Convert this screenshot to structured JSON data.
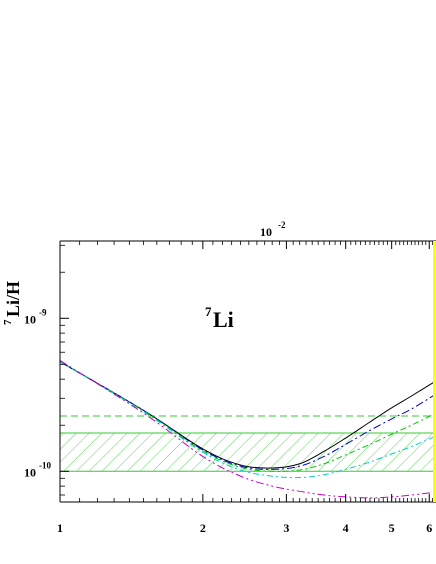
{
  "chart_data": {
    "type": "line",
    "panel_label": {
      "base": "Li",
      "sup": "7"
    },
    "ylabel": {
      "sup": "7",
      "text": "Li/H"
    },
    "top_label": {
      "base": "10",
      "sup": "-2"
    },
    "x_scale": "log",
    "y_scale": "log",
    "xlim": [
      1,
      6.2
    ],
    "ylim": [
      6.3e-11,
      3.2e-09
    ],
    "x_ticks": [
      {
        "value": 1,
        "label": "1"
      },
      {
        "value": 2,
        "label": "2"
      },
      {
        "value": 3,
        "label": "3"
      },
      {
        "value": 4,
        "label": "4"
      },
      {
        "value": 5,
        "label": "5"
      },
      {
        "value": 6,
        "label": "6"
      }
    ],
    "y_ticks": [
      {
        "value": 1e-10,
        "base": "10",
        "sup": "-10"
      },
      {
        "value": 1e-09,
        "base": "10",
        "sup": "-9"
      }
    ],
    "colors": {
      "band": "#33cc33",
      "yellow": "#ffff00",
      "black": "#000000",
      "blue": "#0000cc",
      "green": "#00cc00",
      "cyan": "#00cccc",
      "magenta": "#cc00cc"
    },
    "bands": {
      "hatched_range": [
        1e-10,
        1.78e-10
      ],
      "dashed_level": 2.3e-10
    },
    "series": [
      {
        "color": "#000000",
        "dash": "",
        "x": [
          1,
          1.5,
          2,
          2.4,
          2.8,
          3.2,
          3.6,
          4,
          4.5,
          5,
          5.5,
          6.2
        ],
        "values": [
          5.2e-10,
          2.5e-10,
          1.4e-10,
          1.1e-10,
          1.05e-10,
          1.12e-10,
          1.35e-10,
          1.65e-10,
          2.1e-10,
          2.6e-10,
          3.1e-10,
          3.9e-10
        ]
      },
      {
        "color": "#0000cc",
        "dash": "8,3,2,3",
        "x": [
          1,
          1.5,
          2,
          2.4,
          2.8,
          3.2,
          3.6,
          4,
          4.5,
          5,
          5.5,
          6.2
        ],
        "values": [
          5.2e-10,
          2.5e-10,
          1.38e-10,
          1.08e-10,
          1.03e-10,
          1.08e-10,
          1.25e-10,
          1.5e-10,
          1.85e-10,
          2.2e-10,
          2.55e-10,
          3.2e-10
        ]
      },
      {
        "color": "#00cc00",
        "dash": "6,3,2,3",
        "x": [
          1,
          1.5,
          2,
          2.4,
          2.8,
          3.2,
          3.6,
          4,
          4.5,
          5,
          5.5,
          6.2
        ],
        "values": [
          5.2e-10,
          2.48e-10,
          1.36e-10,
          1.06e-10,
          1e-10,
          1.02e-10,
          1.12e-10,
          1.28e-10,
          1.5e-10,
          1.75e-10,
          2e-10,
          2.4e-10
        ]
      },
      {
        "color": "#00cccc",
        "dash": "6,3,2,3",
        "x": [
          1,
          1.5,
          2,
          2.4,
          2.8,
          3.2,
          3.6,
          4,
          4.5,
          5,
          5.5,
          6.2
        ],
        "values": [
          5.2e-10,
          2.45e-10,
          1.33e-10,
          1.02e-10,
          9.3e-11,
          9.1e-11,
          9.5e-11,
          1.03e-10,
          1.15e-10,
          1.3e-10,
          1.45e-10,
          1.7e-10
        ]
      },
      {
        "color": "#cc00cc",
        "dash": "8,3,2,3,2,3",
        "x": [
          1,
          1.5,
          2,
          2.4,
          2.8,
          3.2,
          3.6,
          4,
          4.5,
          5,
          5.5,
          6.2
        ],
        "values": [
          5.3e-10,
          2.4e-10,
          1.25e-10,
          9.3e-11,
          8e-11,
          7.4e-11,
          7e-11,
          6.8e-11,
          6.7e-11,
          6.8e-11,
          7e-11,
          7.3e-11
        ]
      }
    ]
  }
}
